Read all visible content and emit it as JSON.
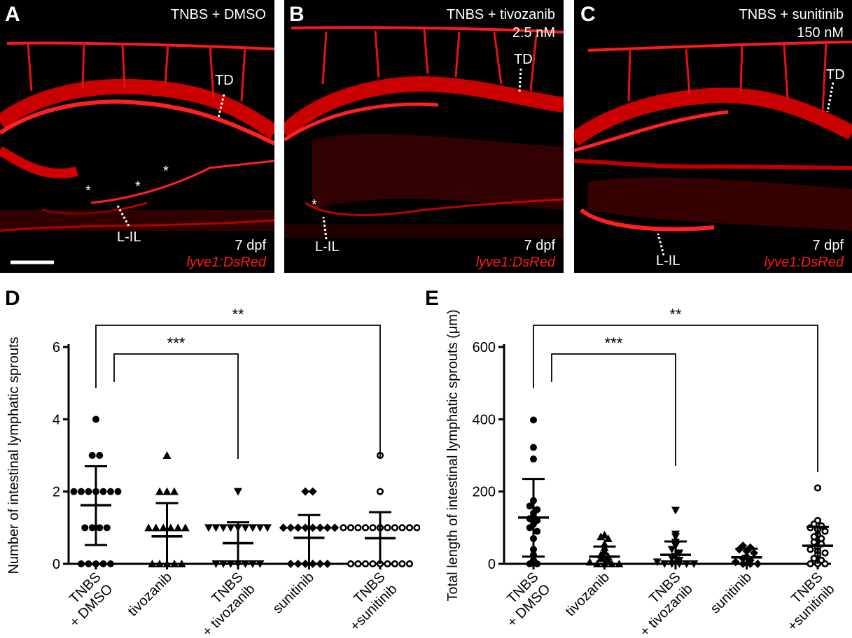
{
  "panels": [
    {
      "label": "A",
      "condition_line1": "TNBS + DMSO",
      "condition_line2": "",
      "stage": "7 dpf",
      "reporter": "lyve1:DsRed",
      "td": "TD",
      "lil": "L-IL",
      "asterisk": "*"
    },
    {
      "label": "B",
      "condition_line1": "TNBS + tivozanib",
      "condition_line2": "2.5 nM",
      "stage": "7 dpf",
      "reporter": "lyve1:DsRed",
      "td": "TD",
      "lil": "L-IL",
      "asterisk": "*"
    },
    {
      "label": "C",
      "condition_line1": "TNBS + sunitinib",
      "condition_line2": "150 nM",
      "stage": "7 dpf",
      "reporter": "lyve1:DsRed",
      "td": "TD",
      "lil": "L-IL",
      "asterisk": ""
    }
  ],
  "chart_data": [
    {
      "panel": "D",
      "type": "scatter",
      "ylabel": "Number of intestinal lymphatic sprouts",
      "ylim": [
        0,
        6
      ],
      "yticks": [
        0,
        2,
        4,
        6
      ],
      "categories": [
        {
          "line1": "TNBS",
          "line2": "+ DMSO"
        },
        {
          "line1": "tivozanib",
          "line2": ""
        },
        {
          "line1": "TNBS",
          "line2": "+ tivozanib"
        },
        {
          "line1": "sunitinib",
          "line2": ""
        },
        {
          "line1": "TNBS",
          "line2": "+sunitinib"
        }
      ],
      "series": [
        {
          "marker": "circle",
          "mean": 1.62,
          "sd_low": 0.52,
          "sd_high": 2.7,
          "values": [
            4,
            3,
            3,
            2,
            2,
            2,
            2,
            2,
            2,
            2,
            1,
            1,
            1,
            1,
            0,
            0,
            0,
            0,
            0
          ]
        },
        {
          "marker": "triangle-up",
          "mean": 0.76,
          "sd_low": 0,
          "sd_high": 1.68,
          "values": [
            3,
            2,
            2,
            2,
            1,
            1,
            1,
            1,
            1,
            1,
            0,
            0,
            0,
            0,
            0
          ]
        },
        {
          "marker": "triangle-down",
          "mean": 0.57,
          "sd_low": 0,
          "sd_high": 1.15,
          "values": [
            2,
            1,
            1,
            1,
            1,
            1,
            1,
            1,
            1,
            1,
            0,
            0,
            0,
            0,
            0,
            0,
            0
          ]
        },
        {
          "marker": "diamond",
          "mean": 0.72,
          "sd_low": 0,
          "sd_high": 1.35,
          "values": [
            2,
            2,
            1,
            1,
            1,
            1,
            1,
            1,
            1,
            1,
            0,
            0,
            0,
            0,
            0,
            0
          ]
        },
        {
          "marker": "open-circle",
          "mean": 0.71,
          "sd_low": 0,
          "sd_high": 1.43,
          "values": [
            3,
            2,
            1,
            1,
            1,
            1,
            1,
            1,
            1,
            1,
            1,
            1,
            1,
            0,
            0,
            0,
            0,
            0,
            0,
            0,
            0,
            0
          ]
        }
      ],
      "significance": [
        {
          "from": 0,
          "to": 4,
          "label": "**"
        },
        {
          "from": 0,
          "to": 2,
          "label": "***"
        }
      ]
    },
    {
      "panel": "E",
      "type": "scatter",
      "ylabel": "Total length of intestinal lymphatic sprouts (μm)",
      "ylim": [
        0,
        600
      ],
      "yticks": [
        0,
        200,
        400,
        600
      ],
      "categories": [
        {
          "line1": "TNBS",
          "line2": "+ DMSO"
        },
        {
          "line1": "tivozanib",
          "line2": ""
        },
        {
          "line1": "TNBS",
          "line2": "+ tivozanib"
        },
        {
          "line1": "sunitinib",
          "line2": ""
        },
        {
          "line1": "TNBS",
          "line2": "+sunitinib"
        }
      ],
      "series": [
        {
          "marker": "circle",
          "mean": 128,
          "sd_low": 20,
          "sd_high": 235,
          "values": [
            398,
            322,
            290,
            175,
            160,
            150,
            140,
            130,
            125,
            120,
            110,
            100,
            90,
            70,
            40,
            25,
            10,
            0,
            0
          ]
        },
        {
          "marker": "triangle-up",
          "mean": 20,
          "sd_low": -10,
          "sd_high": 48,
          "values": [
            80,
            75,
            70,
            55,
            45,
            35,
            25,
            20,
            15,
            10,
            5,
            0,
            0,
            0,
            0
          ]
        },
        {
          "marker": "triangle-down",
          "mean": 25,
          "sd_low": -5,
          "sd_high": 62,
          "values": [
            148,
            82,
            75,
            60,
            50,
            40,
            30,
            20,
            15,
            10,
            5,
            0,
            0,
            0,
            0,
            0
          ]
        },
        {
          "marker": "diamond",
          "mean": 18,
          "sd_low": -5,
          "sd_high": 42,
          "values": [
            50,
            45,
            40,
            35,
            30,
            20,
            15,
            10,
            5,
            0,
            0,
            0
          ]
        },
        {
          "marker": "open-circle",
          "mean": 50,
          "sd_low": 0,
          "sd_high": 102,
          "values": [
            210,
            120,
            110,
            105,
            100,
            95,
            90,
            80,
            75,
            70,
            60,
            55,
            45,
            40,
            35,
            30,
            25,
            15,
            10,
            0,
            0,
            0
          ]
        }
      ],
      "significance": [
        {
          "from": 0,
          "to": 4,
          "label": "**"
        },
        {
          "from": 0,
          "to": 2,
          "label": "***"
        }
      ]
    }
  ]
}
